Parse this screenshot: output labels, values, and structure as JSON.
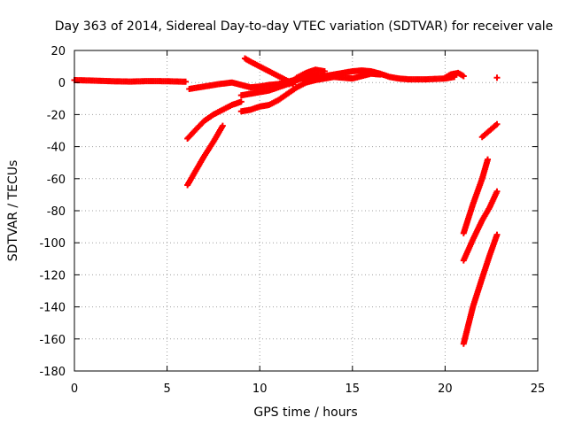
{
  "chart_data": {
    "type": "scatter",
    "title": "Day 363 of 2014, Sidereal Day-to-day VTEC variation (SDTVAR) for receiver vale",
    "xlabel": "GPS time / hours",
    "ylabel": "SDTVAR / TECUs",
    "xlim": [
      0,
      25
    ],
    "ylim": [
      -180,
      20
    ],
    "xticks": [
      0,
      5,
      10,
      15,
      20,
      25
    ],
    "yticks": [
      20,
      0,
      -20,
      -40,
      -60,
      -80,
      -100,
      -120,
      -140,
      -160,
      -180
    ],
    "grid": true,
    "marker": "plus",
    "color": "#ff0000",
    "series": [
      {
        "points": [
          [
            0.0,
            1.5
          ],
          [
            1.0,
            1.2
          ],
          [
            2.0,
            0.8
          ],
          [
            3.0,
            0.6
          ],
          [
            4.0,
            0.9
          ],
          [
            5.0,
            0.8
          ],
          [
            6.0,
            0.5
          ]
        ]
      },
      {
        "points": [
          [
            6.2,
            -4.0
          ],
          [
            7.0,
            -2.5
          ],
          [
            7.8,
            -1.0
          ],
          [
            8.5,
            0.0
          ],
          [
            9.0,
            -1.5
          ],
          [
            9.5,
            -3.0
          ],
          [
            10.0,
            -2.5
          ],
          [
            10.5,
            -1.5
          ],
          [
            11.0,
            -1.0
          ],
          [
            11.5,
            0.5
          ],
          [
            12.0,
            2.0
          ],
          [
            12.5,
            4.0
          ],
          [
            13.0,
            4.5
          ],
          [
            13.5,
            4.0
          ],
          [
            14.0,
            5.0
          ],
          [
            14.5,
            6.0
          ],
          [
            15.0,
            7.0
          ],
          [
            15.5,
            7.5
          ],
          [
            16.0,
            7.0
          ],
          [
            16.5,
            5.5
          ],
          [
            17.0,
            3.5
          ],
          [
            17.5,
            2.5
          ],
          [
            18.0,
            2.0
          ],
          [
            19.0,
            2.0
          ],
          [
            20.0,
            2.5
          ],
          [
            20.5,
            3.5
          ]
        ]
      },
      {
        "points": [
          [
            6.1,
            -35
          ],
          [
            6.5,
            -30
          ],
          [
            7.0,
            -24
          ],
          [
            7.5,
            -20
          ],
          [
            8.0,
            -17
          ],
          [
            8.5,
            -14
          ],
          [
            9.0,
            -12
          ]
        ]
      },
      {
        "points": [
          [
            6.1,
            -64
          ],
          [
            6.5,
            -56
          ],
          [
            7.0,
            -46
          ],
          [
            7.5,
            -37
          ],
          [
            8.0,
            -27
          ]
        ]
      },
      {
        "points": [
          [
            9.0,
            -18
          ],
          [
            9.5,
            -17
          ],
          [
            10.0,
            -15
          ],
          [
            10.5,
            -14
          ],
          [
            11.0,
            -11
          ],
          [
            11.5,
            -7
          ],
          [
            12.0,
            -3
          ],
          [
            12.5,
            0
          ],
          [
            13.0,
            1.5
          ],
          [
            13.5,
            2.5
          ],
          [
            14.0,
            3.5
          ],
          [
            14.5,
            3.0
          ],
          [
            15.0,
            2.5
          ],
          [
            15.5,
            4.0
          ],
          [
            16.0,
            5.5
          ],
          [
            16.5,
            5.0
          ]
        ]
      },
      {
        "points": [
          [
            9.0,
            -8
          ],
          [
            9.5,
            -7
          ],
          [
            10.0,
            -6
          ],
          [
            10.5,
            -5
          ],
          [
            11.0,
            -3
          ],
          [
            11.5,
            -1
          ],
          [
            12.0,
            1.5
          ],
          [
            12.5,
            3.5
          ],
          [
            13.0,
            4.0
          ]
        ]
      },
      {
        "points": [
          [
            9.2,
            15
          ],
          [
            9.5,
            13
          ],
          [
            10.0,
            10
          ],
          [
            10.5,
            7
          ],
          [
            11.0,
            4
          ],
          [
            11.5,
            1
          ],
          [
            11.8,
            -1
          ]
        ]
      },
      {
        "points": [
          [
            11.6,
            -1
          ],
          [
            12.0,
            3
          ],
          [
            12.5,
            6
          ],
          [
            13.0,
            8
          ],
          [
            13.5,
            7
          ]
        ]
      },
      {
        "points": [
          [
            20.0,
            3
          ],
          [
            20.3,
            5
          ],
          [
            20.7,
            6
          ],
          [
            21.0,
            4
          ]
        ]
      },
      {
        "points": [
          [
            22.8,
            3
          ]
        ]
      },
      {
        "points": [
          [
            22.0,
            -34
          ],
          [
            22.4,
            -30
          ],
          [
            22.8,
            -26
          ]
        ]
      },
      {
        "points": [
          [
            21.0,
            -94
          ],
          [
            21.5,
            -76
          ],
          [
            22.0,
            -60
          ],
          [
            22.3,
            -48
          ]
        ]
      },
      {
        "points": [
          [
            21.0,
            -111
          ],
          [
            21.5,
            -98
          ],
          [
            22.0,
            -86
          ],
          [
            22.4,
            -78
          ],
          [
            22.8,
            -68
          ]
        ]
      },
      {
        "points": [
          [
            21.0,
            -163
          ],
          [
            21.5,
            -140
          ],
          [
            22.0,
            -122
          ],
          [
            22.4,
            -108
          ],
          [
            22.8,
            -95
          ]
        ]
      }
    ]
  }
}
